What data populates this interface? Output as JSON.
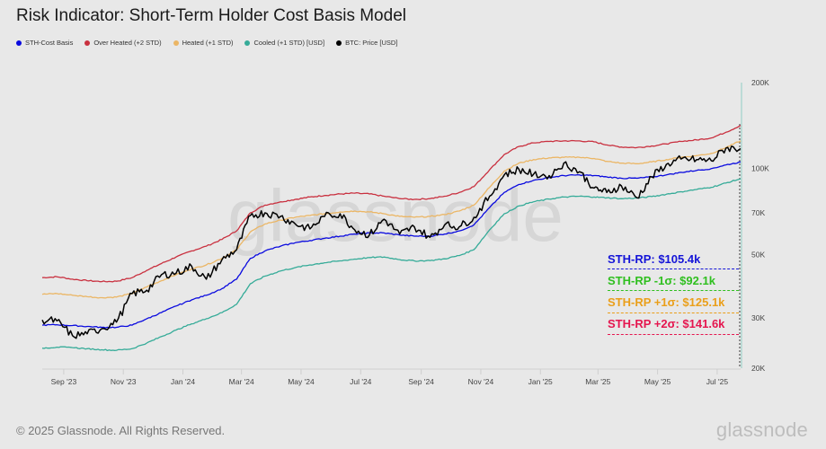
{
  "title": "Risk Indicator: Short-Term Holder Cost Basis Model",
  "legend": [
    {
      "label": "STH-Cost Basis",
      "color": "#0a0adf"
    },
    {
      "label": "Over Heated (+2 STD)",
      "color": "#c9303f"
    },
    {
      "label": "Heated (+1 STD)",
      "color": "#ebb665"
    },
    {
      "label": "Cooled (+1 STD) [USD]",
      "color": "#35ab98"
    },
    {
      "label": "BTC: Price [USD]",
      "color": "#000000"
    }
  ],
  "annotations": [
    {
      "label": "STH-RP: $105.4k",
      "color": "#1515d8"
    },
    {
      "label": "STH-RP -1σ: $92.1k",
      "color": "#2fbf1f"
    },
    {
      "label": "STH-RP +1σ: $125.1k",
      "color": "#ea9f1a"
    },
    {
      "label": "STH-RP +2σ: $141.6k",
      "color": "#e5164f"
    }
  ],
  "footer": {
    "copyright": "© 2025 Glassnode. All Rights Reserved.",
    "brand": "glassnode"
  },
  "watermark": "glassnode",
  "chart_data": {
    "type": "line",
    "title": "Risk Indicator: Short-Term Holder Cost Basis Model",
    "yscale": "log",
    "ylim": [
      20000,
      200000
    ],
    "ytick_values": [
      20000,
      30000,
      50000,
      70000,
      100000,
      200000
    ],
    "ytick_labels": [
      "20K",
      "30K",
      "50K",
      "70K",
      "100K",
      "200K"
    ],
    "xlim": [
      "2023-08-10",
      "2025-07-25"
    ],
    "xtick_values": [
      "2023-09-01",
      "2023-11-01",
      "2024-01-01",
      "2024-03-01",
      "2024-05-01",
      "2024-07-01",
      "2024-09-01",
      "2024-11-01",
      "2025-01-01",
      "2025-03-01",
      "2025-05-01",
      "2025-07-01"
    ],
    "xtick_labels": [
      "Sep '23",
      "Nov '23",
      "Jan '24",
      "Mar '24",
      "May '24",
      "Jul '24",
      "Sep '24",
      "Nov '24",
      "Jan '25",
      "Mar '25",
      "May '25",
      "Jul '25"
    ],
    "legend_position": "top-left",
    "x": [
      "2023-08-10",
      "2023-08-25",
      "2023-09-10",
      "2023-09-25",
      "2023-10-10",
      "2023-10-25",
      "2023-11-10",
      "2023-11-25",
      "2023-12-10",
      "2023-12-25",
      "2024-01-10",
      "2024-01-25",
      "2024-02-10",
      "2024-02-25",
      "2024-03-10",
      "2024-03-25",
      "2024-04-10",
      "2024-04-25",
      "2024-05-10",
      "2024-05-25",
      "2024-06-10",
      "2024-06-25",
      "2024-07-10",
      "2024-07-25",
      "2024-08-10",
      "2024-08-25",
      "2024-09-10",
      "2024-09-25",
      "2024-10-10",
      "2024-10-25",
      "2024-11-10",
      "2024-11-25",
      "2024-12-10",
      "2024-12-25",
      "2025-01-10",
      "2025-01-25",
      "2025-02-10",
      "2025-02-25",
      "2025-03-10",
      "2025-03-25",
      "2025-04-10",
      "2025-04-25",
      "2025-05-10",
      "2025-05-25",
      "2025-06-10",
      "2025-06-25",
      "2025-07-10",
      "2025-07-25"
    ],
    "series": [
      {
        "name": "Over Heated (+2 STD)",
        "color": "#c9303f",
        "values": [
          41500,
          41800,
          41000,
          40500,
          40200,
          40300,
          41500,
          44000,
          46500,
          49000,
          51500,
          53500,
          56500,
          60500,
          70000,
          74500,
          76500,
          78000,
          79500,
          80500,
          81500,
          82000,
          81500,
          80000,
          78500,
          78000,
          78500,
          80000,
          82500,
          86500,
          99000,
          112000,
          119500,
          123000,
          124500,
          125000,
          125000,
          124000,
          121000,
          119000,
          118500,
          120000,
          122000,
          124500,
          126000,
          128000,
          134000,
          141600
        ]
      },
      {
        "name": "Heated (+1 STD)",
        "color": "#ebb665",
        "values": [
          36300,
          36500,
          36000,
          35600,
          35300,
          35500,
          36500,
          38500,
          40500,
          42500,
          44500,
          46000,
          48500,
          52000,
          60000,
          64000,
          66000,
          67500,
          68500,
          69500,
          70500,
          71000,
          70500,
          69500,
          68000,
          67500,
          68000,
          69000,
          71000,
          74500,
          86000,
          98000,
          104500,
          107500,
          109000,
          109500,
          109500,
          108500,
          106000,
          104500,
          104000,
          105500,
          107500,
          109500,
          111000,
          113000,
          118500,
          125100
        ]
      },
      {
        "name": "STH-Cost Basis",
        "color": "#0a0adf",
        "values": [
          28300,
          28400,
          28200,
          28000,
          27800,
          27800,
          28300,
          29800,
          31300,
          33000,
          34700,
          36000,
          38000,
          41000,
          48500,
          51500,
          53500,
          55000,
          56000,
          57000,
          58000,
          59000,
          59500,
          59500,
          58500,
          58000,
          58000,
          59000,
          60500,
          63500,
          73000,
          82500,
          88000,
          91000,
          93000,
          94500,
          95000,
          94500,
          93500,
          92500,
          92500,
          93500,
          95000,
          97000,
          98500,
          100000,
          103000,
          105400
        ]
      },
      {
        "name": "Cooled (+1 STD) [USD]",
        "color": "#35ab98",
        "values": [
          23500,
          23700,
          23600,
          23400,
          23200,
          23100,
          23400,
          24500,
          25800,
          27200,
          28600,
          29800,
          31300,
          33500,
          39500,
          42000,
          43800,
          45000,
          46000,
          46800,
          47500,
          48200,
          48800,
          49000,
          48000,
          47500,
          47600,
          48300,
          49600,
          52000,
          61000,
          69500,
          74000,
          76500,
          78200,
          79500,
          80000,
          79500,
          79000,
          78500,
          78800,
          79800,
          81300,
          83000,
          84500,
          86000,
          89000,
          92100
        ]
      },
      {
        "name": "BTC: Price [USD]",
        "color": "#000000",
        "values": [
          29500,
          29300,
          26000,
          26400,
          27500,
          29000,
          36500,
          37500,
          42500,
          43000,
          45500,
          41000,
          48000,
          52000,
          68500,
          70000,
          68000,
          64000,
          61500,
          68000,
          69500,
          61000,
          58500,
          66500,
          59000,
          62500,
          57500,
          63500,
          62500,
          67500,
          80000,
          95000,
          99500,
          95500,
          94500,
          104500,
          97500,
          85500,
          82500,
          87000,
          79000,
          93500,
          103500,
          108000,
          107500,
          106500,
          118000,
          117500
        ]
      }
    ]
  }
}
